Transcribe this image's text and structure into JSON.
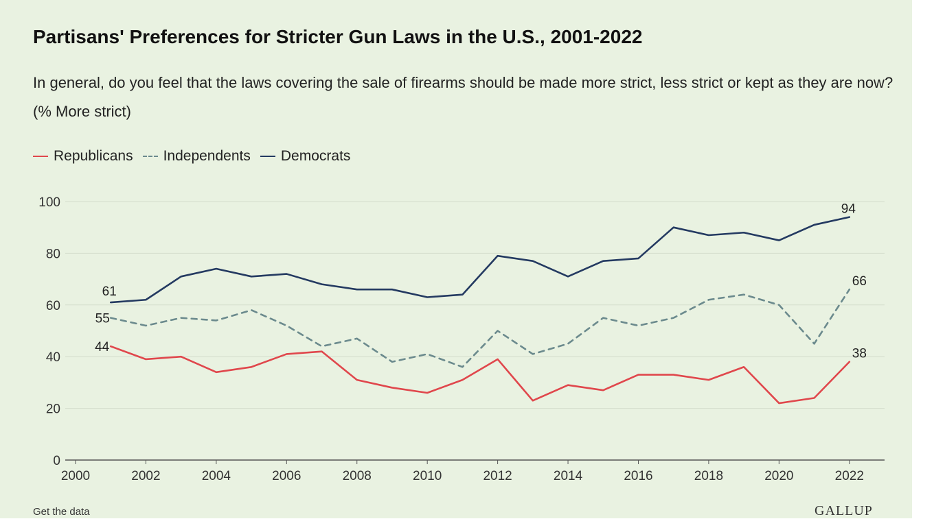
{
  "colors": {
    "background": "#e9f2e1",
    "republicans": "#e0474c",
    "independents": "#6b8a8d",
    "democrats": "#243a61",
    "grid": "#d3dccb",
    "axis": "#555555"
  },
  "footer": {
    "get_data_label": "Get the data",
    "logo": "GALLUP"
  },
  "chart_data": {
    "type": "line",
    "title": "Partisans' Preferences for Stricter Gun Laws in the U.S., 2001-2022",
    "subtitle": "In general, do you feel that the laws covering the sale of firearms should be made more strict, less strict or kept as they are now? (% More strict)",
    "xlabel": "",
    "ylabel": "",
    "xlim": [
      2000,
      2023
    ],
    "ylim": [
      0,
      100
    ],
    "x_ticks": [
      2000,
      2002,
      2004,
      2006,
      2008,
      2010,
      2012,
      2014,
      2016,
      2018,
      2020,
      2022
    ],
    "y_ticks": [
      0,
      20,
      40,
      60,
      80,
      100
    ],
    "grid": true,
    "legend_position": "top-left",
    "x": [
      2001,
      2002,
      2003,
      2004,
      2005,
      2006,
      2007,
      2008,
      2009,
      2010,
      2011,
      2012,
      2013,
      2014,
      2015,
      2016,
      2017,
      2018,
      2019,
      2020,
      2021,
      2022
    ],
    "series": [
      {
        "name": "Republicans",
        "color": "#e0474c",
        "style": "solid",
        "values": [
          44,
          39,
          40,
          34,
          36,
          41,
          42,
          31,
          28,
          26,
          31,
          39,
          23,
          29,
          27,
          33,
          33,
          31,
          36,
          22,
          24,
          38
        ]
      },
      {
        "name": "Independents",
        "color": "#6b8a8d",
        "style": "dashed",
        "values": [
          55,
          52,
          55,
          54,
          58,
          52,
          44,
          47,
          38,
          41,
          36,
          50,
          41,
          45,
          55,
          52,
          55,
          62,
          64,
          60,
          45,
          66
        ]
      },
      {
        "name": "Democrats",
        "color": "#243a61",
        "style": "solid",
        "values": [
          61,
          62,
          71,
          74,
          71,
          72,
          68,
          66,
          66,
          63,
          64,
          79,
          77,
          71,
          77,
          78,
          90,
          87,
          88,
          85,
          91,
          94
        ]
      }
    ],
    "annotations": [
      {
        "series": "Democrats",
        "x": 2001,
        "text": "61"
      },
      {
        "series": "Independents",
        "x": 2001,
        "text": "55"
      },
      {
        "series": "Republicans",
        "x": 2001,
        "text": "44"
      },
      {
        "series": "Democrats",
        "x": 2022,
        "text": "94"
      },
      {
        "series": "Independents",
        "x": 2022,
        "text": "66"
      },
      {
        "series": "Republicans",
        "x": 2022,
        "text": "38"
      }
    ]
  }
}
